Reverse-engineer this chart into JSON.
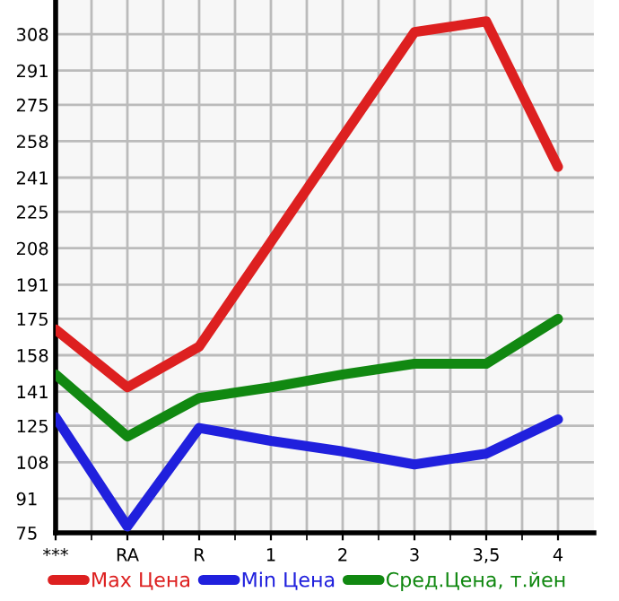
{
  "chart_data": {
    "type": "line",
    "categories": [
      "***",
      "RA",
      "R",
      "1",
      "2",
      "3",
      "3,5",
      "4"
    ],
    "series": [
      {
        "name": "Max Цена",
        "color": "#dd2020",
        "values": [
          170,
          143,
          162,
          211,
          260,
          309,
          314,
          246
        ]
      },
      {
        "name": "Min Цена",
        "color": "#2020dd",
        "values": [
          129,
          78,
          124,
          118,
          113,
          107,
          112,
          128
        ]
      },
      {
        "name": "Сред.Цена, т.йен",
        "color": "#118811",
        "values": [
          149,
          120,
          138,
          143,
          149,
          154,
          154,
          175
        ]
      }
    ],
    "ylim": [
      75,
      324
    ],
    "yticks": [
      75,
      91,
      108,
      125,
      141,
      158,
      175,
      191,
      208,
      225,
      241,
      258,
      275,
      291,
      308
    ],
    "grid": true,
    "legend": "bottom",
    "marker": "none",
    "line_style": "solid"
  }
}
